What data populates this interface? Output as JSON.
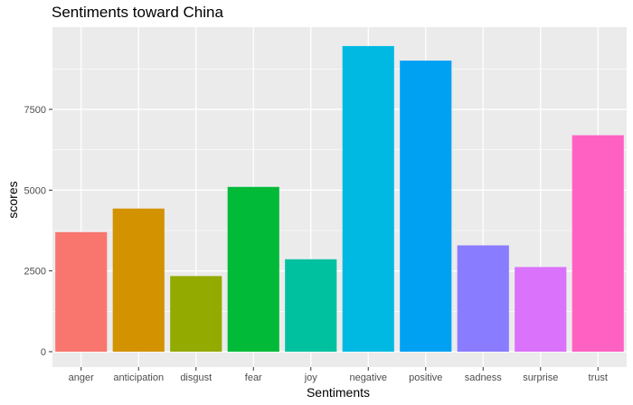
{
  "chart_data": {
    "type": "bar",
    "title": "Sentiments toward China",
    "xlabel": "Sentiments",
    "ylabel": "scores",
    "categories": [
      "anger",
      "anticipation",
      "disgust",
      "fear",
      "joy",
      "negative",
      "positive",
      "sadness",
      "surprise",
      "trust"
    ],
    "values": [
      3700,
      4430,
      2340,
      5100,
      2860,
      9460,
      9010,
      3290,
      2620,
      6700
    ],
    "colors": [
      "#F8766D",
      "#D39200",
      "#93AA00",
      "#00BA38",
      "#00C19F",
      "#00B9E3",
      "#00A1F3",
      "#8A7CFF",
      "#DB72FB",
      "#FF61C3"
    ],
    "yticks": [
      0,
      2500,
      5000,
      7500
    ],
    "ytick_labels": [
      "0",
      "2500",
      "5000",
      "7500"
    ],
    "ylim": [
      0,
      9700
    ],
    "grid": true,
    "legend": "none",
    "panel_background": "#EBEBEB"
  }
}
